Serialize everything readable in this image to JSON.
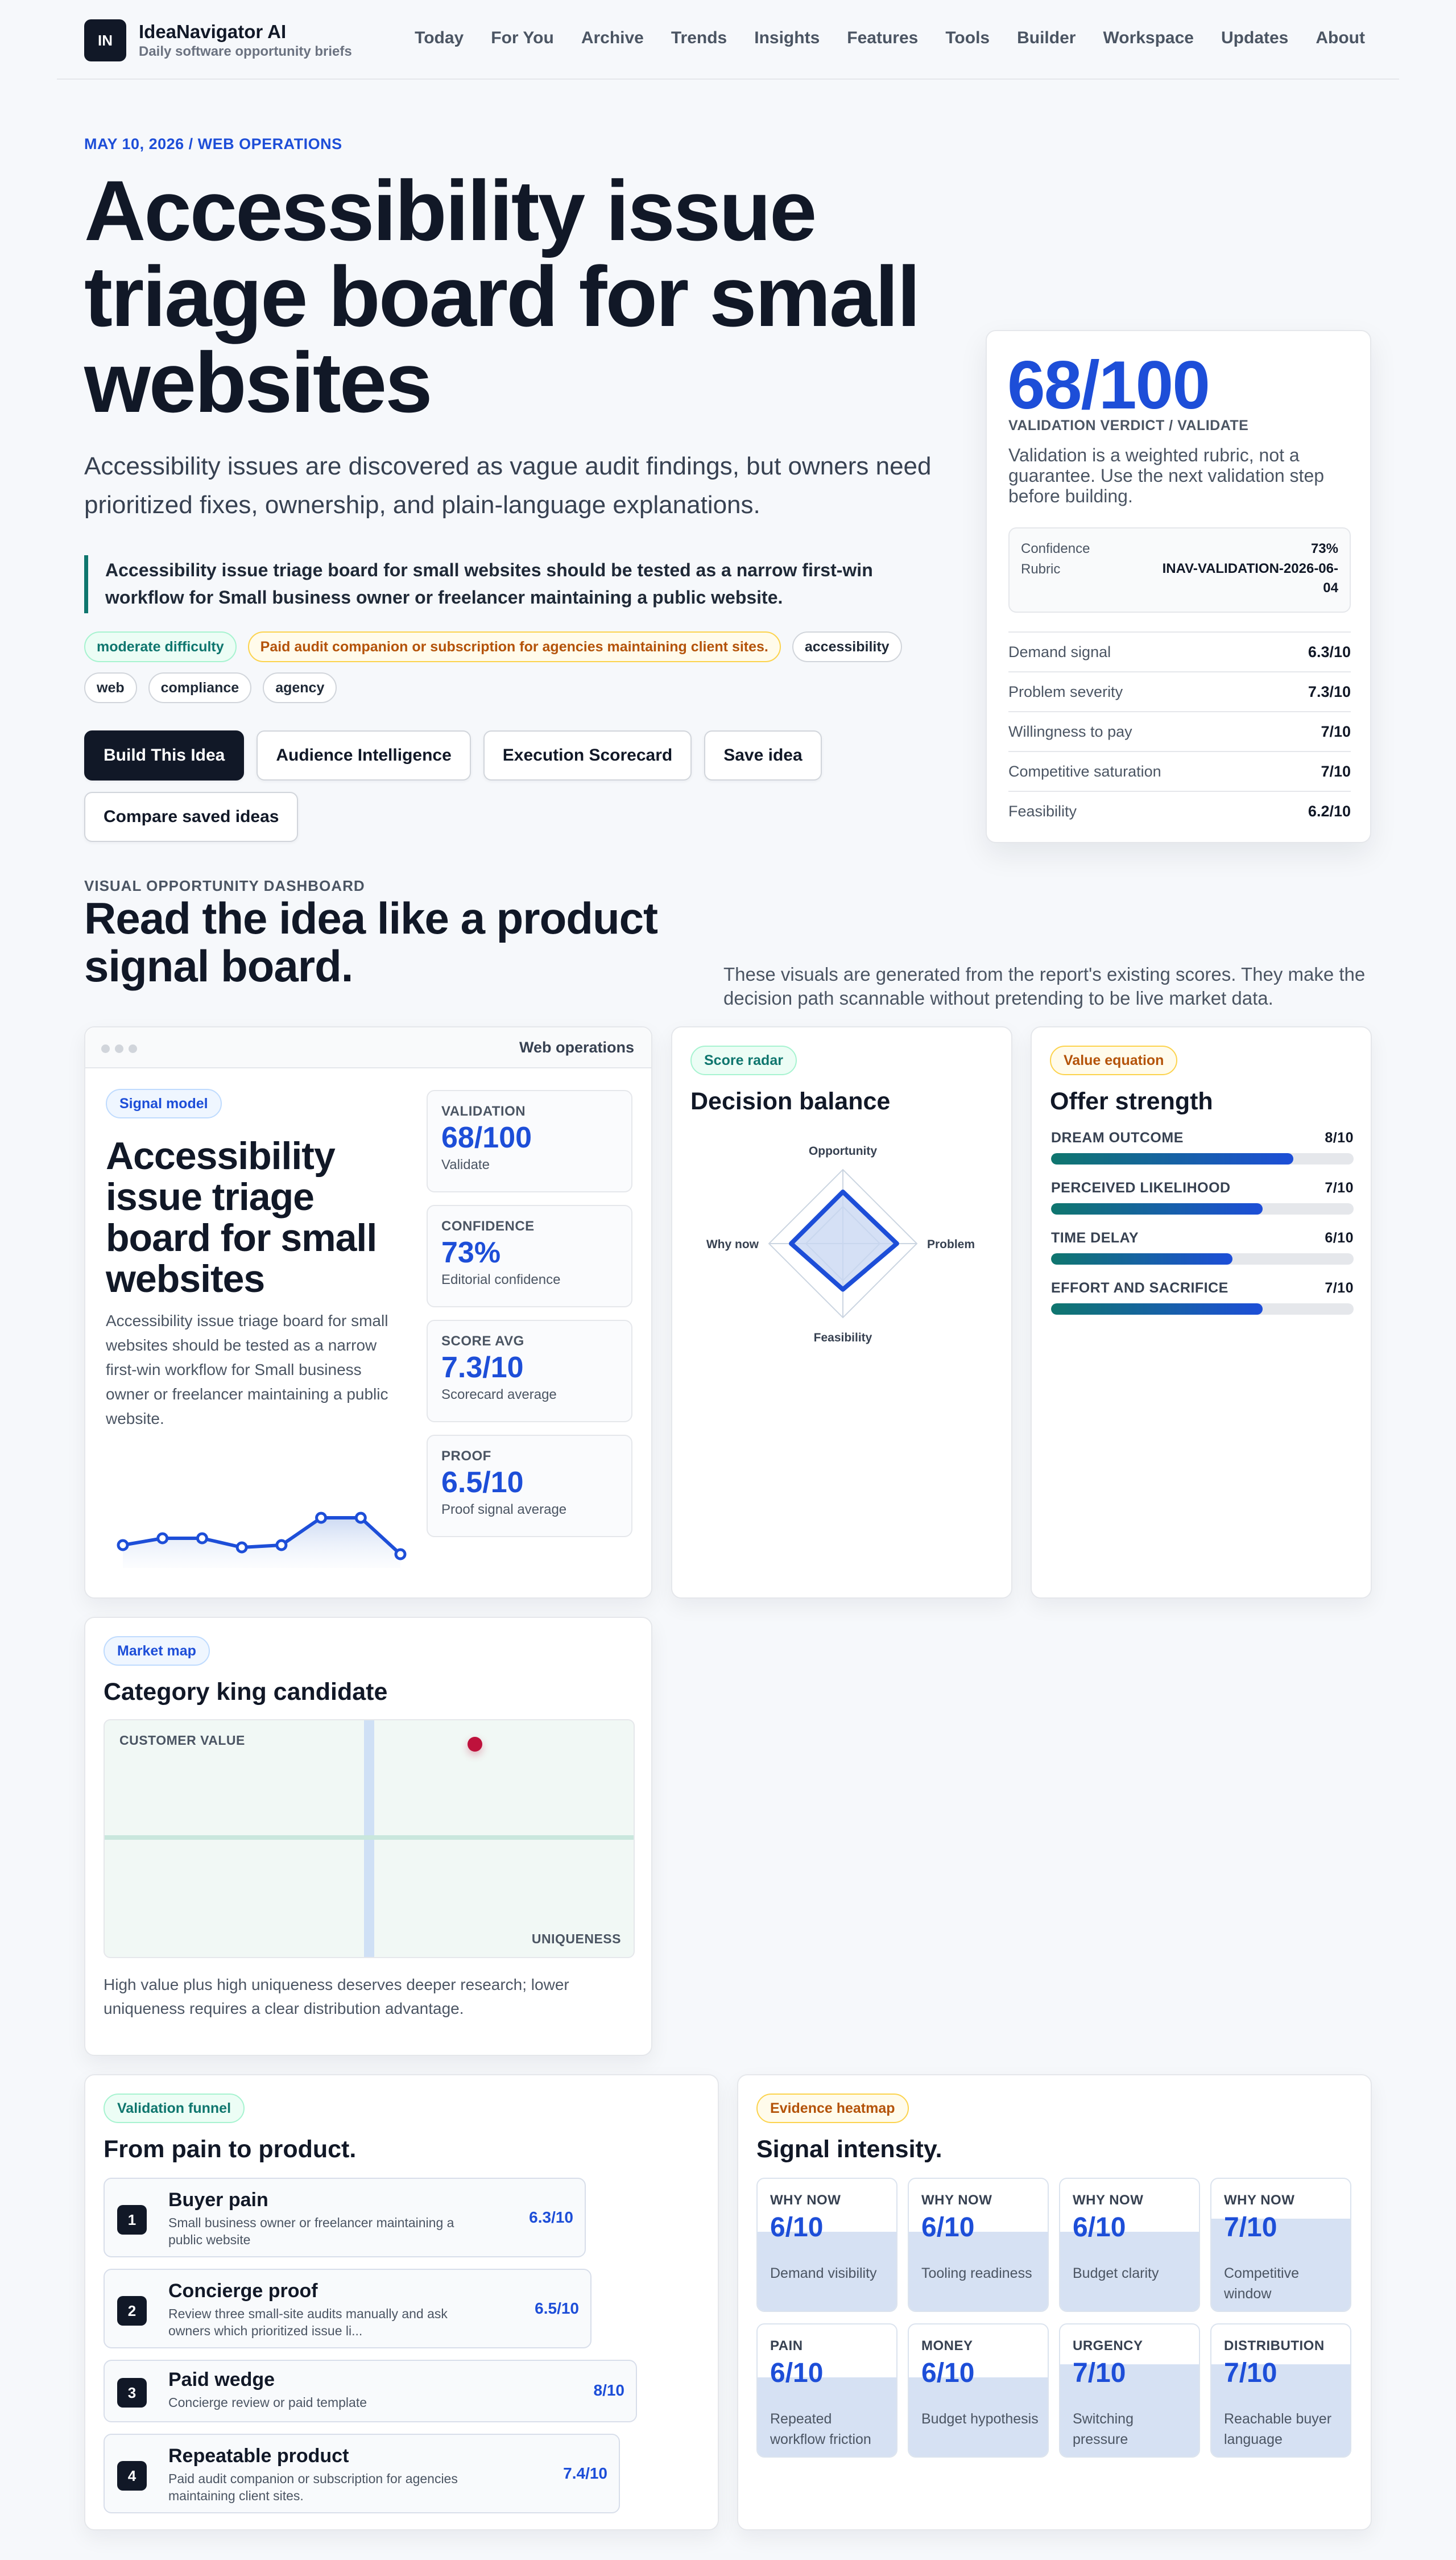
{
  "brand": {
    "logo": "IN",
    "name": "IdeaNavigator AI",
    "tagline": "Daily software opportunity briefs"
  },
  "nav": [
    "Today",
    "For You",
    "Archive",
    "Trends",
    "Insights",
    "Features",
    "Tools",
    "Builder",
    "Workspace",
    "Updates",
    "About"
  ],
  "hero": {
    "eyebrow": "MAY 10, 2026 / WEB OPERATIONS",
    "title": "Accessibility issue triage board for small websites",
    "subtitle": "Accessibility issues are discovered as vague audit findings, but owners need prioritized fixes, ownership, and plain-language explanations.",
    "quote": "Accessibility issue triage board for small websites should be tested as a narrow first-win workflow for Small business owner or freelancer maintaining a public website.",
    "tags": [
      "moderate difficulty",
      "Paid audit companion or subscription for agencies maintaining client sites.",
      "accessibility",
      "web",
      "compliance",
      "agency"
    ],
    "actions": [
      "Build This Idea",
      "Audience Intelligence",
      "Execution Scorecard",
      "Save idea",
      "Compare saved ideas"
    ]
  },
  "validation": {
    "score": "68/100",
    "label": "VALIDATION VERDICT / VALIDATE",
    "desc": "Validation is a weighted rubric, not a guarantee. Use the next validation step before building.",
    "confidence_label": "Confidence",
    "confidence": "73%",
    "rubric_label": "Rubric",
    "rubric": "INAV-VALIDATION-2026-06-04",
    "metrics": [
      {
        "k": "Demand signal",
        "v": "6.3/10"
      },
      {
        "k": "Problem severity",
        "v": "7.3/10"
      },
      {
        "k": "Willingness to pay",
        "v": "7/10"
      },
      {
        "k": "Competitive saturation",
        "v": "7/10"
      },
      {
        "k": "Feasibility",
        "v": "6.2/10"
      }
    ]
  },
  "dashboard": {
    "eyebrow": "VISUAL OPPORTUNITY DASHBOARD",
    "title": "Read the idea like a product signal board.",
    "desc": "These visuals are generated from the report's existing scores. They make the decision path scannable without pretending to be live market data."
  },
  "signal_model": {
    "window_title": "Web operations",
    "pill": "Signal model",
    "title": "Accessibility issue triage board for small websites",
    "desc": "Accessibility issue triage board for small websites should be tested as a narrow first-win workflow for Small business owner or freelancer maintaining a public website.",
    "sparkline": [
      6.0,
      6.3,
      6.3,
      5.9,
      6.0,
      7.2,
      7.2,
      5.6
    ],
    "stats": [
      {
        "k": "VALIDATION",
        "v": "68/100",
        "s": "Validate"
      },
      {
        "k": "CONFIDENCE",
        "v": "73%",
        "s": "Editorial confidence"
      },
      {
        "k": "SCORE AVG",
        "v": "7.3/10",
        "s": "Scorecard average"
      },
      {
        "k": "PROOF",
        "v": "6.5/10",
        "s": "Proof signal average"
      }
    ]
  },
  "radar": {
    "pill": "Score radar",
    "title": "Decision balance",
    "axes": [
      "Opportunity",
      "Problem",
      "Feasibility",
      "Why now"
    ],
    "values": [
      7,
      7.3,
      6.2,
      7
    ],
    "max": 10,
    "color": "#1d4ed8"
  },
  "offer": {
    "pill": "Value equation",
    "title": "Offer strength",
    "bars": [
      {
        "k": "DREAM OUTCOME",
        "v": "8/10",
        "value": 8,
        "color": "#1d4ed8"
      },
      {
        "k": "PERCEIVED LIKELIHOOD",
        "v": "7/10",
        "value": 7,
        "color": "#1d4ed8"
      },
      {
        "k": "TIME DELAY",
        "v": "6/10",
        "value": 6,
        "color": "#1d4ed8"
      },
      {
        "k": "EFFORT AND SACRIFICE",
        "v": "7/10",
        "value": 7,
        "color": "#1d4ed8"
      }
    ],
    "accent_start": "#0f766e"
  },
  "market": {
    "pill": "Market map",
    "title": "Category king candidate",
    "y_label": "CUSTOMER VALUE",
    "x_label": "UNIQUENESS",
    "point": {
      "uniqueness": 0.7,
      "value": 0.9
    },
    "point_color": "#be123c",
    "desc": "High value plus high uniqueness deserves deeper research; lower uniqueness requires a clear distribution advantage."
  },
  "funnel": {
    "pill": "Validation funnel",
    "title": "From pain to product.",
    "steps": [
      {
        "n": "1",
        "title": "Buyer pain",
        "desc": "Small business owner or freelancer maintaining a public website",
        "score": "6.3/10"
      },
      {
        "n": "2",
        "title": "Concierge proof",
        "desc": "Review three small-site audits manually and ask owners which prioritized issue li...",
        "score": "6.5/10"
      },
      {
        "n": "3",
        "title": "Paid wedge",
        "desc": "Concierge review or paid template",
        "score": "8/10"
      },
      {
        "n": "4",
        "title": "Repeatable product",
        "desc": "Paid audit companion or subscription for agencies maintaining client sites.",
        "score": "7.4/10"
      }
    ]
  },
  "heatmap": {
    "pill": "Evidence heatmap",
    "title": "Signal intensity.",
    "cells": [
      {
        "k": "WHY NOW",
        "v": "6/10",
        "value": 6,
        "s": "Demand visibility"
      },
      {
        "k": "WHY NOW",
        "v": "6/10",
        "value": 6,
        "s": "Tooling readiness"
      },
      {
        "k": "WHY NOW",
        "v": "6/10",
        "value": 6,
        "s": "Budget clarity"
      },
      {
        "k": "WHY NOW",
        "v": "7/10",
        "value": 7,
        "s": "Competitive window"
      },
      {
        "k": "PAIN",
        "v": "6/10",
        "value": 6,
        "s": "Repeated workflow friction"
      },
      {
        "k": "MONEY",
        "v": "6/10",
        "value": 6,
        "s": "Budget hypothesis"
      },
      {
        "k": "URGENCY",
        "v": "7/10",
        "value": 7,
        "s": "Switching pressure"
      },
      {
        "k": "DISTRIBUTION",
        "v": "7/10",
        "value": 7,
        "s": "Reachable buyer language"
      }
    ]
  }
}
